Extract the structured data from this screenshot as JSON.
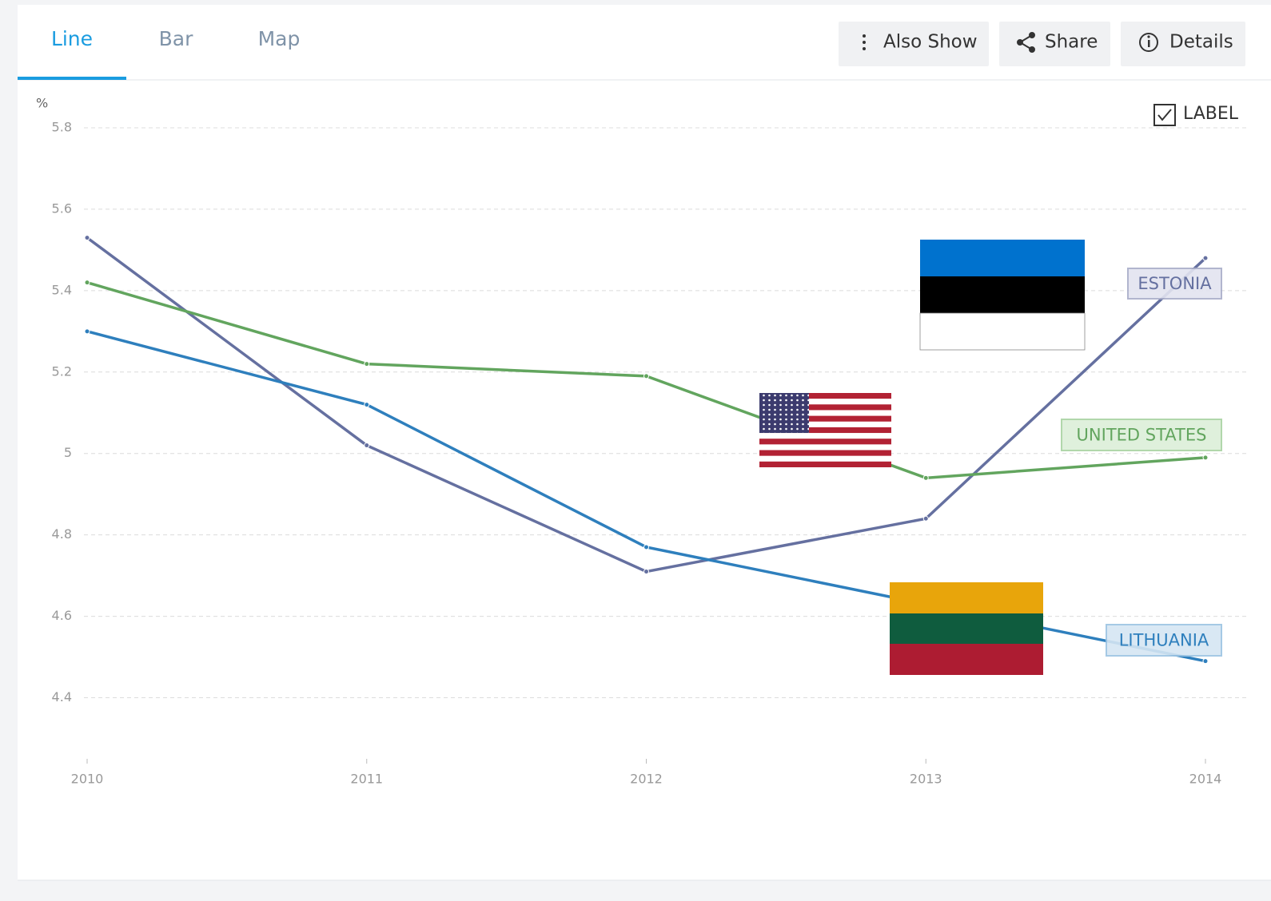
{
  "tabs": [
    "Line",
    "Bar",
    "Map"
  ],
  "buttons": [
    "Also Show",
    "Share",
    "Details"
  ],
  "label_toggle": "LABEL",
  "chart_data": {
    "type": "line",
    "y_label": "%",
    "x": [
      2010,
      2011,
      2012,
      2013,
      2014
    ],
    "xlim": [
      2010,
      2014
    ],
    "xticks": [
      2010,
      2011,
      2012,
      2013,
      2014
    ],
    "ylim": [
      4.25,
      5.8
    ],
    "yticks": [
      4.4,
      4.6,
      4.8,
      5.0,
      5.2,
      5.4,
      5.6,
      5.8
    ],
    "grid": true,
    "series": [
      {
        "name": "ESTONIA",
        "color": "#6570a0",
        "values": [
          5.53,
          5.02,
          4.71,
          4.84,
          5.48
        ]
      },
      {
        "name": "UNITED STATES",
        "color": "#62a55e",
        "values": [
          5.42,
          5.22,
          5.19,
          4.94,
          4.99
        ]
      },
      {
        "name": "LITHUANIA",
        "color": "#2e7fbd",
        "values": [
          5.3,
          5.12,
          4.77,
          4.63,
          4.49
        ]
      }
    ]
  }
}
